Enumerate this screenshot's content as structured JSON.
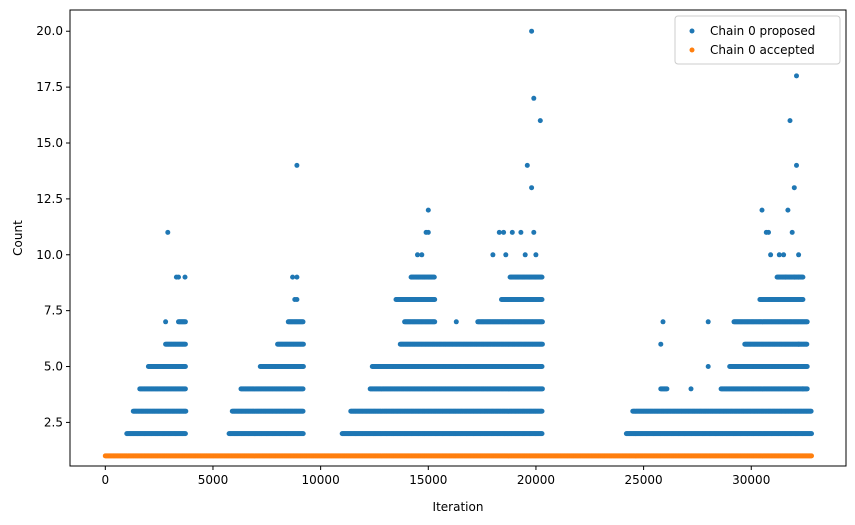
{
  "chart_data": {
    "type": "scatter",
    "title": "",
    "xlabel": "Iteration",
    "ylabel": "Count",
    "xlim": [
      -1640,
      34400
    ],
    "ylim": [
      0.55,
      20.95
    ],
    "xticks": [
      0,
      5000,
      10000,
      15000,
      20000,
      25000,
      30000
    ],
    "yticks": [
      2.5,
      5.0,
      7.5,
      10.0,
      12.5,
      15.0,
      17.5,
      20.0
    ],
    "xtick_labels": [
      "0",
      "5000",
      "10000",
      "15000",
      "20000",
      "25000",
      "30000"
    ],
    "ytick_labels": [
      "2.5",
      "5.0",
      "7.5",
      "10.0",
      "12.5",
      "15.0",
      "17.5",
      "20.0"
    ],
    "grid": false,
    "legend_position": "top-right",
    "series": [
      {
        "name": "Chain 0 proposed",
        "color": "#1f77b4",
        "bands": [
          {
            "y": 2,
            "ranges": [
              [
                1000,
                3750
              ],
              [
                5750,
                9200
              ],
              [
                11000,
                20300
              ],
              [
                24200,
                32800
              ]
            ]
          },
          {
            "y": 3,
            "ranges": [
              [
                1300,
                3750
              ],
              [
                5900,
                9200
              ],
              [
                11400,
                20300
              ],
              [
                24500,
                32800
              ]
            ]
          },
          {
            "y": 4,
            "ranges": [
              [
                1600,
                3750
              ],
              [
                6300,
                9200
              ],
              [
                12300,
                20300
              ],
              [
                25800,
                26100
              ],
              [
                28600,
                32600
              ]
            ]
          },
          {
            "y": 5,
            "ranges": [
              [
                2000,
                3750
              ],
              [
                7200,
                9200
              ],
              [
                12400,
                20300
              ],
              [
                29000,
                32600
              ]
            ]
          },
          {
            "y": 6,
            "ranges": [
              [
                2800,
                3750
              ],
              [
                8000,
                9200
              ],
              [
                13700,
                20300
              ],
              [
                29700,
                32600
              ]
            ]
          },
          {
            "y": 7,
            "ranges": [
              [
                3400,
                3750
              ],
              [
                8500,
                9200
              ],
              [
                13900,
                15300
              ],
              [
                17300,
                20300
              ],
              [
                29200,
                32600
              ]
            ]
          },
          {
            "y": 8,
            "ranges": [
              [
                13500,
                15300
              ],
              [
                18400,
                20300
              ],
              [
                30400,
                32400
              ]
            ]
          },
          {
            "y": 9,
            "ranges": [
              [
                14200,
                15300
              ],
              [
                18800,
                20300
              ],
              [
                31200,
                32400
              ]
            ]
          }
        ],
        "points": [
          [
            2800,
            7
          ],
          [
            2900,
            11
          ],
          [
            3300,
            9
          ],
          [
            3400,
            9
          ],
          [
            3700,
            9
          ],
          [
            8700,
            9
          ],
          [
            8900,
            9
          ],
          [
            8800,
            8
          ],
          [
            8900,
            8
          ],
          [
            8900,
            14
          ],
          [
            14500,
            10
          ],
          [
            14700,
            10
          ],
          [
            14900,
            11
          ],
          [
            15000,
            11
          ],
          [
            15000,
            12
          ],
          [
            16300,
            7
          ],
          [
            16600,
            5
          ],
          [
            18000,
            10
          ],
          [
            18300,
            11
          ],
          [
            18500,
            11
          ],
          [
            18600,
            10
          ],
          [
            18900,
            11
          ],
          [
            19300,
            11
          ],
          [
            19500,
            10
          ],
          [
            19600,
            14
          ],
          [
            19800,
            20
          ],
          [
            19900,
            17
          ],
          [
            19800,
            13
          ],
          [
            19900,
            11
          ],
          [
            20000,
            10
          ],
          [
            20200,
            16
          ],
          [
            25800,
            6
          ],
          [
            25900,
            7
          ],
          [
            27200,
            4
          ],
          [
            28000,
            7
          ],
          [
            28000,
            5
          ],
          [
            30500,
            12
          ],
          [
            30700,
            11
          ],
          [
            30800,
            11
          ],
          [
            30900,
            10
          ],
          [
            31300,
            10
          ],
          [
            31500,
            10
          ],
          [
            31600,
            9
          ],
          [
            31700,
            12
          ],
          [
            31800,
            16
          ],
          [
            31900,
            11
          ],
          [
            32000,
            13
          ],
          [
            32100,
            14
          ],
          [
            32100,
            18
          ],
          [
            32200,
            10
          ],
          [
            32000,
            9
          ],
          [
            32200,
            9
          ],
          [
            32400,
            4
          ],
          [
            32200,
            6
          ],
          [
            32300,
            5
          ]
        ]
      },
      {
        "name": "Chain 0 accepted",
        "color": "#ff7f0e",
        "bands": [
          {
            "y": 1,
            "ranges": [
              [
                0,
                32800
              ]
            ]
          }
        ],
        "points": []
      }
    ]
  }
}
